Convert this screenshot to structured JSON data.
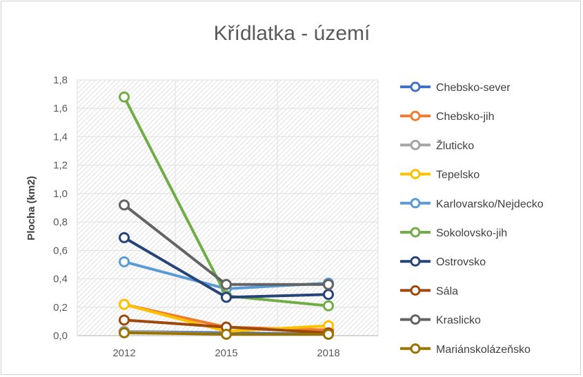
{
  "chart_data": {
    "type": "line",
    "title": "Křídlatka - území",
    "xlabel": "",
    "ylabel": "Plocha (km2)",
    "categories": [
      "2012",
      "2015",
      "2018"
    ],
    "ylim": [
      0,
      1.8
    ],
    "yticks": [
      "0,0",
      "0,2",
      "0,4",
      "0,6",
      "0,8",
      "1,0",
      "1,2",
      "1,4",
      "1,6",
      "1,8"
    ],
    "grid": true,
    "legend": "right",
    "series": [
      {
        "name": "Chebsko-sever",
        "color": "#4472c4",
        "values": [
          0.03,
          0.02,
          0.01
        ]
      },
      {
        "name": "Chebsko-jih",
        "color": "#ed7d31",
        "values": [
          0.22,
          0.06,
          0.04
        ]
      },
      {
        "name": "Žluticko",
        "color": "#a5a5a5",
        "values": [
          0.03,
          0.01,
          0.01
        ]
      },
      {
        "name": "Tepelsko",
        "color": "#ffc000",
        "values": [
          0.22,
          0.03,
          0.07
        ]
      },
      {
        "name": "Karlovarsko/Nejdecko",
        "color": "#5b9bd5",
        "values": [
          0.52,
          0.33,
          0.37
        ]
      },
      {
        "name": "Sokolovsko-jih",
        "color": "#70ad47",
        "values": [
          1.68,
          0.28,
          0.21
        ]
      },
      {
        "name": "Ostrovsko",
        "color": "#264478",
        "values": [
          0.69,
          0.27,
          0.29
        ]
      },
      {
        "name": "Sála",
        "color": "#9e480e",
        "values": [
          0.11,
          0.06,
          0.02
        ]
      },
      {
        "name": "Kraslicko",
        "color": "#636363",
        "values": [
          0.92,
          0.36,
          0.36
        ]
      },
      {
        "name": "Mariánskolázeňsko",
        "color": "#997300",
        "values": [
          0.02,
          0.01,
          0.01
        ]
      }
    ]
  }
}
